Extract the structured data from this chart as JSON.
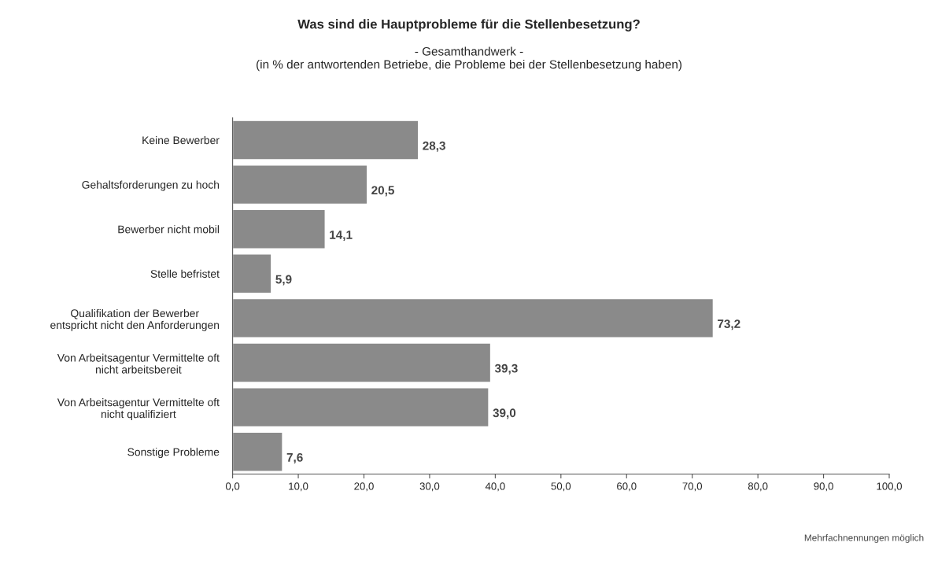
{
  "chart_data": {
    "type": "bar",
    "orientation": "horizontal",
    "title": "Was sind die Hauptprobleme für die Stellenbesetzung?",
    "subtitle": "- Gesamthandwerk -\n(in % der antwortenden Betriebe, die Probleme bei der Stellenbesetzung haben)",
    "categories": [
      "Keine Bewerber",
      "Gehaltsforderungen zu hoch",
      "Bewerber nicht mobil",
      "Stelle befristet",
      "Qualifikation der Bewerber\nentspricht nicht den Anforderungen",
      "Von Arbeitsagentur Vermittelte oft\nnicht arbeitsbereit",
      "Von Arbeitsagentur Vermittelte oft\nnicht qualifiziert",
      "Sonstige Probleme"
    ],
    "values": [
      28.3,
      20.5,
      14.1,
      5.9,
      73.2,
      39.3,
      39.0,
      7.6
    ],
    "value_labels": [
      "28,3",
      "20,5",
      "14,1",
      "5,9",
      "73,2",
      "39,3",
      "39,0",
      "7,6"
    ],
    "color": "#8a8a8a",
    "xlim": [
      0,
      100
    ],
    "xticks": [
      {
        "value": 0,
        "label": "0,0"
      },
      {
        "value": 10,
        "label": "10,0"
      },
      {
        "value": 20,
        "label": "20,0"
      },
      {
        "value": 30,
        "label": "30,0"
      },
      {
        "value": 40,
        "label": "40,0"
      },
      {
        "value": 50,
        "label": "50,0"
      },
      {
        "value": 60,
        "label": "60,0"
      },
      {
        "value": 70,
        "label": "70,0"
      },
      {
        "value": 80,
        "label": "80,0"
      },
      {
        "value": 90,
        "label": "90,0"
      },
      {
        "value": 100,
        "label": "100,0"
      }
    ],
    "annotations": [
      "Mehrfachnennungen möglich"
    ],
    "grid": false,
    "legend": false
  }
}
